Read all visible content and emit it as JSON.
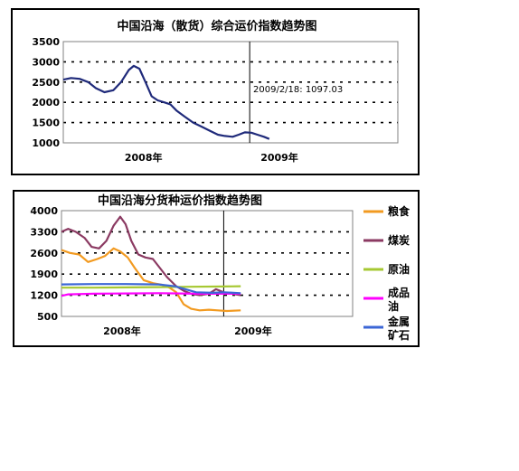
{
  "chart_data": [
    {
      "type": "line",
      "title": "中国沿海（散货）综合运价指数趋势图",
      "xlabel": "",
      "ylabel": "",
      "ylim": [
        1000,
        3500
      ],
      "yticks": [
        "3500",
        "3000",
        "2500",
        "2000",
        "1500",
        "1000"
      ],
      "xtick_labels": [
        "2008年",
        "2009年"
      ],
      "grid": "dotted-horizontal",
      "annotation": "2009/2/18:  1097.03",
      "divider_at": "2009-01",
      "series": [
        {
          "color": "#1f2a7a",
          "points": [
            [
              "2007-10-01",
              2560
            ],
            [
              "2007-10-20",
              2600
            ],
            [
              "2007-11-10",
              2580
            ],
            [
              "2007-12-01",
              2500
            ],
            [
              "2007-12-20",
              2350
            ],
            [
              "2008-01-10",
              2250
            ],
            [
              "2008-02-01",
              2300
            ],
            [
              "2008-02-20",
              2500
            ],
            [
              "2008-03-10",
              2800
            ],
            [
              "2008-03-22",
              2900
            ],
            [
              "2008-04-05",
              2830
            ],
            [
              "2008-04-20",
              2500
            ],
            [
              "2008-05-05",
              2150
            ],
            [
              "2008-05-20",
              2050
            ],
            [
              "2008-06-05",
              2000
            ],
            [
              "2008-06-20",
              1950
            ],
            [
              "2008-07-05",
              1800
            ],
            [
              "2008-07-25",
              1650
            ],
            [
              "2008-08-15",
              1500
            ],
            [
              "2008-09-05",
              1400
            ],
            [
              "2008-09-25",
              1300
            ],
            [
              "2008-10-15",
              1200
            ],
            [
              "2008-11-01",
              1170
            ],
            [
              "2008-11-20",
              1150
            ],
            [
              "2008-12-05",
              1200
            ],
            [
              "2008-12-20",
              1260
            ],
            [
              "2009-01-05",
              1250
            ],
            [
              "2009-01-20",
              1200
            ],
            [
              "2009-02-05",
              1150
            ],
            [
              "2009-02-18",
              1097
            ]
          ]
        }
      ]
    },
    {
      "type": "line",
      "title": "中国沿海分货种运价指数趋势图",
      "xlabel": "",
      "ylabel": "",
      "ylim": [
        500,
        4000
      ],
      "yticks": [
        "4000",
        "3300",
        "2600",
        "1900",
        "1200",
        "500"
      ],
      "xtick_labels": [
        "2008年",
        "2009年"
      ],
      "grid": "dotted-horizontal",
      "divider_at": "2009-01",
      "legend_position": "right",
      "series": [
        {
          "name": "粮食",
          "color": "#f29a20",
          "points": [
            [
              "2007-10-01",
              2700
            ],
            [
              "2007-10-25",
              2600
            ],
            [
              "2007-11-20",
              2550
            ],
            [
              "2007-12-15",
              2300
            ],
            [
              "2008-01-10",
              2400
            ],
            [
              "2008-02-01",
              2500
            ],
            [
              "2008-02-25",
              2750
            ],
            [
              "2008-03-15",
              2650
            ],
            [
              "2008-04-05",
              2450
            ],
            [
              "2008-04-25",
              2100
            ],
            [
              "2008-05-20",
              1700
            ],
            [
              "2008-06-15",
              1600
            ],
            [
              "2008-07-10",
              1550
            ],
            [
              "2008-08-01",
              1450
            ],
            [
              "2008-08-20",
              1300
            ],
            [
              "2008-09-10",
              900
            ],
            [
              "2008-10-01",
              750
            ],
            [
              "2008-10-25",
              700
            ],
            [
              "2008-11-20",
              720
            ],
            [
              "2008-12-15",
              700
            ],
            [
              "2009-01-10",
              680
            ],
            [
              "2009-02-18",
              700
            ]
          ]
        },
        {
          "name": "煤炭",
          "color": "#8b3a62",
          "points": [
            [
              "2007-10-01",
              3300
            ],
            [
              "2007-10-20",
              3400
            ],
            [
              "2007-11-10",
              3300
            ],
            [
              "2007-12-05",
              3100
            ],
            [
              "2007-12-25",
              2800
            ],
            [
              "2008-01-15",
              2750
            ],
            [
              "2008-02-05",
              3000
            ],
            [
              "2008-02-25",
              3500
            ],
            [
              "2008-03-15",
              3800
            ],
            [
              "2008-03-30",
              3550
            ],
            [
              "2008-04-15",
              3000
            ],
            [
              "2008-05-05",
              2550
            ],
            [
              "2008-05-25",
              2450
            ],
            [
              "2008-06-15",
              2400
            ],
            [
              "2008-07-05",
              2100
            ],
            [
              "2008-07-25",
              1800
            ],
            [
              "2008-08-20",
              1500
            ],
            [
              "2008-09-10",
              1350
            ],
            [
              "2008-10-01",
              1250
            ],
            [
              "2008-10-25",
              1200
            ],
            [
              "2008-11-20",
              1250
            ],
            [
              "2008-12-10",
              1400
            ],
            [
              "2009-01-01",
              1300
            ],
            [
              "2009-01-25",
              1250
            ],
            [
              "2009-02-18",
              1200
            ]
          ]
        },
        {
          "name": "原油",
          "color": "#a6c832",
          "points": [
            [
              "2007-10-01",
              1450
            ],
            [
              "2008-01-01",
              1450
            ],
            [
              "2008-04-01",
              1460
            ],
            [
              "2008-07-01",
              1470
            ],
            [
              "2008-10-01",
              1480
            ],
            [
              "2009-01-01",
              1490
            ],
            [
              "2009-02-18",
              1500
            ]
          ]
        },
        {
          "name": "成品油",
          "color": "#ff00ff",
          "points": [
            [
              "2007-10-01",
              1180
            ],
            [
              "2007-10-20",
              1230
            ],
            [
              "2008-01-01",
              1250
            ],
            [
              "2008-04-01",
              1260
            ],
            [
              "2008-07-01",
              1270
            ],
            [
              "2008-09-01",
              1260
            ],
            [
              "2008-10-15",
              1250
            ],
            [
              "2009-01-01",
              1250
            ],
            [
              "2009-02-18",
              1250
            ]
          ]
        },
        {
          "name": "金属矿石",
          "color": "#3b66d6",
          "points": [
            [
              "2007-10-01",
              1560
            ],
            [
              "2008-01-01",
              1570
            ],
            [
              "2008-04-01",
              1570
            ],
            [
              "2008-07-01",
              1560
            ],
            [
              "2008-08-15",
              1500
            ],
            [
              "2008-09-15",
              1400
            ],
            [
              "2008-10-15",
              1300
            ],
            [
              "2008-12-01",
              1280
            ],
            [
              "2009-01-01",
              1300
            ],
            [
              "2009-02-18",
              1270
            ]
          ]
        }
      ]
    }
  ]
}
